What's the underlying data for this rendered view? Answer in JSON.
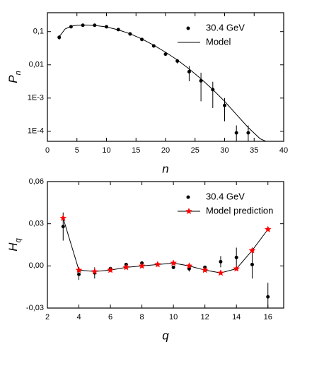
{
  "chart_data": [
    {
      "type": "line",
      "ylog": true,
      "grid": false,
      "legend": "upper right",
      "xlabel": "n",
      "ylabel": "P",
      "ylabel_sub": "n",
      "xlim": [
        0,
        40
      ],
      "xticks": [
        0,
        5,
        10,
        15,
        20,
        25,
        30,
        35,
        40
      ],
      "ylim": [
        5e-05,
        0.37
      ],
      "yticks": [
        {
          "value": 0.1,
          "label": "0,1"
        },
        {
          "value": 0.01,
          "label": "0,01"
        },
        {
          "value": 0.001,
          "label": "1E-3"
        },
        {
          "value": 0.0001,
          "label": "1E-4"
        }
      ],
      "series": [
        {
          "name": "30.4 GeV",
          "style": "points",
          "color": "#000000",
          "x": [
            2,
            4,
            6,
            8,
            10,
            12,
            14,
            16,
            18,
            20,
            22,
            24,
            26,
            28,
            30,
            32,
            34
          ],
          "values": [
            0.067,
            0.14,
            0.155,
            0.155,
            0.14,
            0.115,
            0.085,
            0.058,
            0.037,
            0.021,
            0.013,
            0.0062,
            0.0033,
            0.0018,
            0.0006,
            9e-05,
            9e-05
          ],
          "errors": [
            0.01,
            0.005,
            0.005,
            0.005,
            0.005,
            0.004,
            0.003,
            0.002,
            0.002,
            0.002,
            0.002,
            0.003,
            0.0025,
            0.0013,
            0.0004,
            6e-05,
            6e-05
          ]
        },
        {
          "name": "Model",
          "style": "line",
          "color": "#000000",
          "x": [
            2,
            3,
            4,
            5,
            6,
            7,
            8,
            10,
            12,
            14,
            16,
            18,
            20,
            22,
            24,
            26,
            28,
            30,
            32,
            34,
            36,
            37
          ],
          "values": [
            0.07,
            0.12,
            0.145,
            0.155,
            0.158,
            0.157,
            0.153,
            0.138,
            0.113,
            0.086,
            0.06,
            0.039,
            0.024,
            0.014,
            0.0075,
            0.0038,
            0.0018,
            0.0008,
            0.00032,
            0.00013,
            6e-05,
            5e-05
          ]
        }
      ]
    },
    {
      "type": "line",
      "ylog": false,
      "grid": false,
      "legend": "upper right",
      "xlabel": "q",
      "ylabel": "H",
      "ylabel_sub": "q",
      "xlim": [
        2,
        17
      ],
      "xticks": [
        2,
        4,
        6,
        8,
        10,
        12,
        14,
        16
      ],
      "ylim": [
        -0.03,
        0.06
      ],
      "yticks": [
        {
          "value": 0.06,
          "label": "0,06"
        },
        {
          "value": 0.03,
          "label": "0,03"
        },
        {
          "value": 0,
          "label": "0,00"
        },
        {
          "value": -0.03,
          "label": "-0,03"
        }
      ],
      "series": [
        {
          "name": "30.4 GeV",
          "style": "points",
          "color": "#000000",
          "x": [
            3,
            4,
            5,
            6,
            7,
            8,
            9,
            10,
            11,
            12,
            13,
            14,
            15,
            16
          ],
          "values": [
            0.028,
            -0.006,
            -0.005,
            -0.002,
            0.001,
            0.002,
            0.001,
            -0.001,
            -0.002,
            -0.001,
            0.003,
            0.006,
            0.001,
            -0.022
          ],
          "errors": [
            0.01,
            0.004,
            0.004,
            0.001,
            0.001,
            0.001,
            0.001,
            0.001,
            0.002,
            0.001,
            0.004,
            0.007,
            0.01,
            0.01
          ]
        },
        {
          "name": "Model prediction",
          "style": "line+star",
          "color": "#ff0000",
          "line_color": "#000000",
          "x": [
            3,
            4,
            5,
            6,
            7,
            8,
            9,
            10,
            11,
            12,
            13,
            14,
            15,
            16
          ],
          "values": [
            0.034,
            -0.003,
            -0.004,
            -0.003,
            -0.001,
            0,
            0.001,
            0.002,
            0,
            -0.003,
            -0.005,
            -0.002,
            0.011,
            0.026
          ]
        }
      ]
    }
  ]
}
